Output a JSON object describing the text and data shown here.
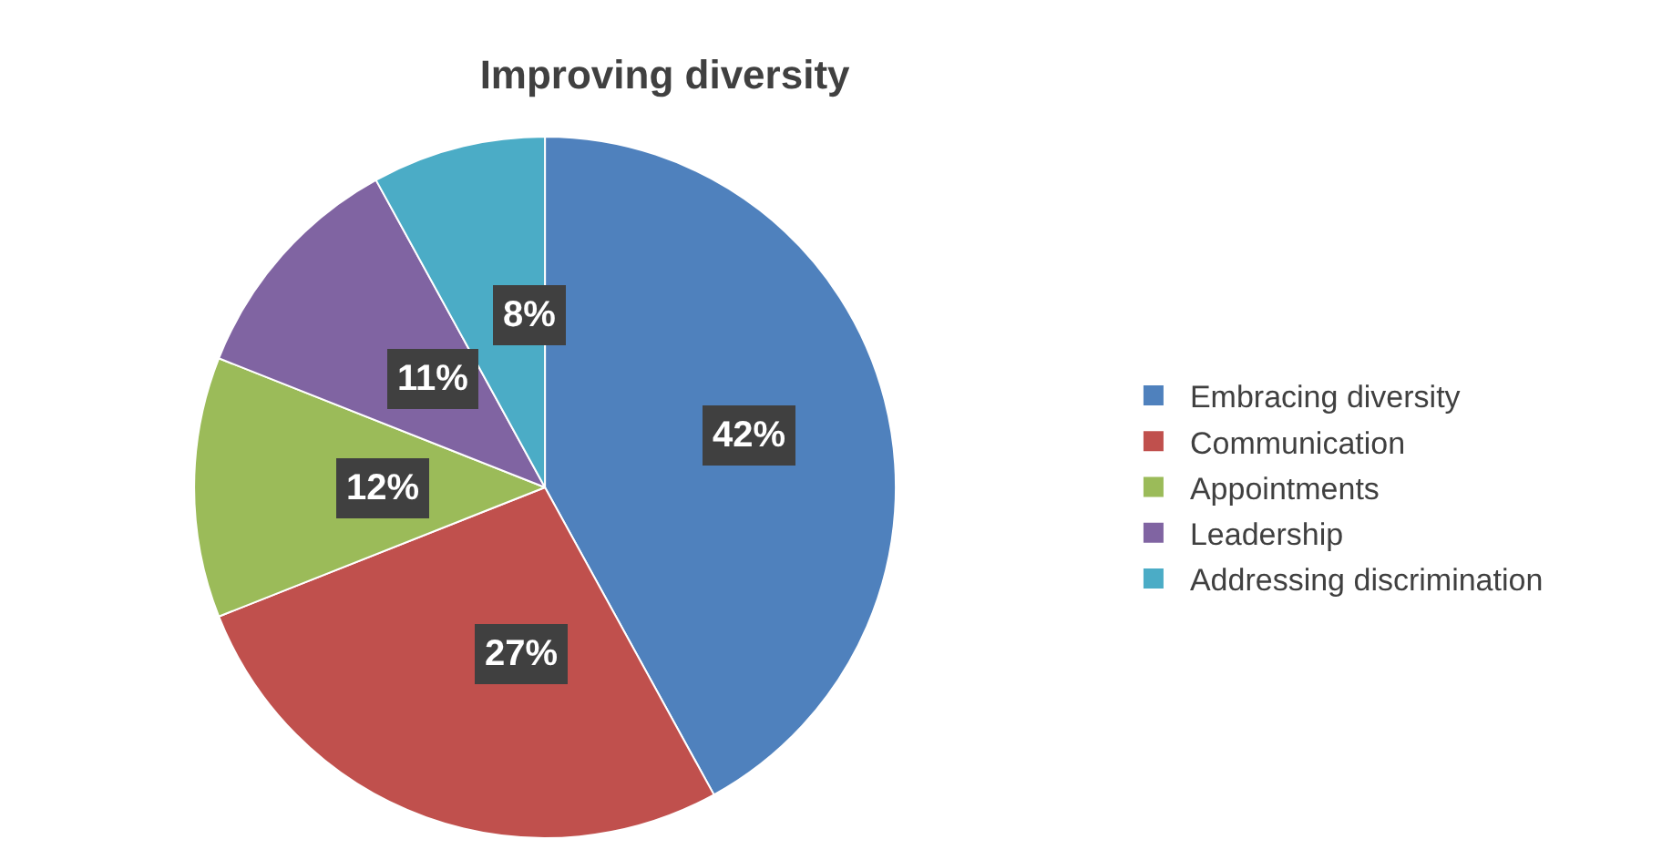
{
  "chart_data": {
    "type": "pie",
    "title": "Improving diversity",
    "categories": [
      "Embracing diversity",
      "Communication",
      "Appointments",
      "Leadership",
      "Addressing discrimination"
    ],
    "values": [
      42,
      27,
      12,
      11,
      8
    ],
    "colors": [
      "#4f81bd",
      "#c0504d",
      "#9bbb59",
      "#8064a2",
      "#4bacc6"
    ],
    "value_labels": [
      "42%",
      "27%",
      "12%",
      "11%",
      "8%"
    ],
    "legend": "right"
  }
}
